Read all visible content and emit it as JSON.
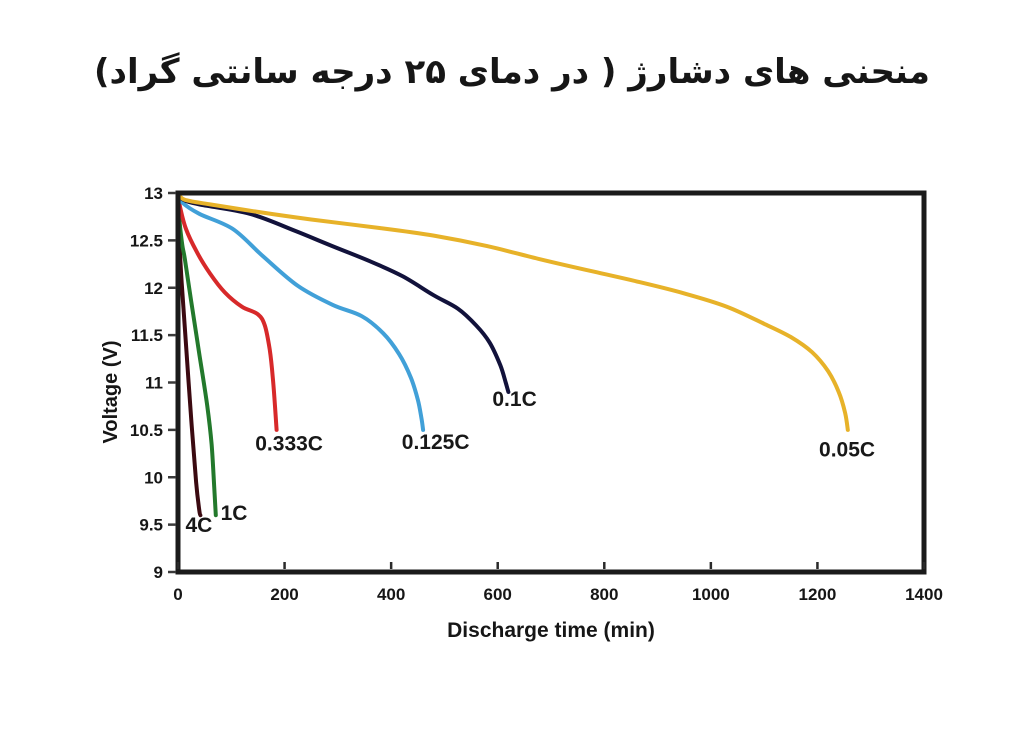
{
  "page": {
    "background": "#ffffff",
    "text_color": "#161616",
    "axis_color": "#1b1b1b"
  },
  "chart_data": {
    "type": "line",
    "title": "منحنی های دشارژ ( در دمای ۲۵ درجه سانتی گراد)",
    "title_translation": "Discharge curves (at 25 degrees Celsius)",
    "xlabel": "Discharge time (min)",
    "ylabel": "Voltage (V)",
    "xlim": [
      0,
      1400
    ],
    "ylim": [
      9,
      13
    ],
    "x_ticks": [
      0,
      200,
      400,
      600,
      800,
      1000,
      1200,
      1400
    ],
    "y_ticks": [
      13,
      12.5,
      12,
      11.5,
      11,
      10.5,
      10,
      9.5,
      9
    ],
    "grid": false,
    "legend_position": "inline-curve-labels",
    "series": [
      {
        "name": "4C",
        "color": "#3b0a11",
        "label_x": 14,
        "label_y": 9.42,
        "points": [
          [
            0,
            13
          ],
          [
            1.5,
            12.75
          ],
          [
            4,
            12.35
          ],
          [
            7,
            12.05
          ],
          [
            15,
            11.4
          ],
          [
            25,
            10.6
          ],
          [
            34,
            9.95
          ],
          [
            40,
            9.65
          ],
          [
            42,
            9.6
          ]
        ]
      },
      {
        "name": "1C",
        "color": "#23792c",
        "label_x": 80,
        "label_y": 9.55,
        "points": [
          [
            0,
            13
          ],
          [
            3,
            12.7
          ],
          [
            8,
            12.45
          ],
          [
            13,
            12.3
          ],
          [
            25,
            11.85
          ],
          [
            40,
            11.3
          ],
          [
            55,
            10.75
          ],
          [
            63,
            10.35
          ],
          [
            68,
            9.9
          ],
          [
            71,
            9.6
          ]
        ]
      },
      {
        "name": "0.333C",
        "color": "#d7292a",
        "label_x": 145,
        "label_y": 10.28,
        "points": [
          [
            0,
            13
          ],
          [
            4,
            12.85
          ],
          [
            15,
            12.62
          ],
          [
            35,
            12.38
          ],
          [
            60,
            12.15
          ],
          [
            88,
            11.95
          ],
          [
            120,
            11.8
          ],
          [
            150,
            11.72
          ],
          [
            163,
            11.6
          ],
          [
            172,
            11.35
          ],
          [
            178,
            11.05
          ],
          [
            182,
            10.75
          ],
          [
            185,
            10.5
          ]
        ]
      },
      {
        "name": "0.125C",
        "color": "#41a0d8",
        "label_x": 420,
        "label_y": 10.3,
        "points": [
          [
            0,
            13
          ],
          [
            8,
            12.9
          ],
          [
            40,
            12.78
          ],
          [
            103,
            12.62
          ],
          [
            160,
            12.33
          ],
          [
            225,
            12.02
          ],
          [
            290,
            11.82
          ],
          [
            345,
            11.7
          ],
          [
            385,
            11.52
          ],
          [
            415,
            11.3
          ],
          [
            437,
            11.05
          ],
          [
            450,
            10.82
          ],
          [
            457,
            10.62
          ],
          [
            460,
            10.5
          ]
        ]
      },
      {
        "name": "0.1C",
        "color": "#12123b",
        "label_x": 590,
        "label_y": 10.75,
        "points": [
          [
            0,
            13
          ],
          [
            10,
            12.93
          ],
          [
            40,
            12.88
          ],
          [
            135,
            12.78
          ],
          [
            220,
            12.6
          ],
          [
            285,
            12.45
          ],
          [
            360,
            12.28
          ],
          [
            422,
            12.12
          ],
          [
            480,
            11.92
          ],
          [
            525,
            11.78
          ],
          [
            560,
            11.6
          ],
          [
            585,
            11.42
          ],
          [
            605,
            11.18
          ],
          [
            615,
            11.0
          ],
          [
            620,
            10.9
          ]
        ]
      },
      {
        "name": "0.05C",
        "color": "#e7b229",
        "label_x": 1203,
        "label_y": 10.22,
        "points": [
          [
            0,
            13
          ],
          [
            12,
            12.93
          ],
          [
            60,
            12.88
          ],
          [
            150,
            12.8
          ],
          [
            250,
            12.72
          ],
          [
            380,
            12.63
          ],
          [
            480,
            12.55
          ],
          [
            580,
            12.44
          ],
          [
            680,
            12.3
          ],
          [
            780,
            12.17
          ],
          [
            866,
            12.06
          ],
          [
            950,
            11.94
          ],
          [
            1030,
            11.8
          ],
          [
            1100,
            11.62
          ],
          [
            1150,
            11.48
          ],
          [
            1190,
            11.32
          ],
          [
            1220,
            11.12
          ],
          [
            1240,
            10.9
          ],
          [
            1252,
            10.68
          ],
          [
            1257,
            10.5
          ]
        ]
      }
    ]
  }
}
